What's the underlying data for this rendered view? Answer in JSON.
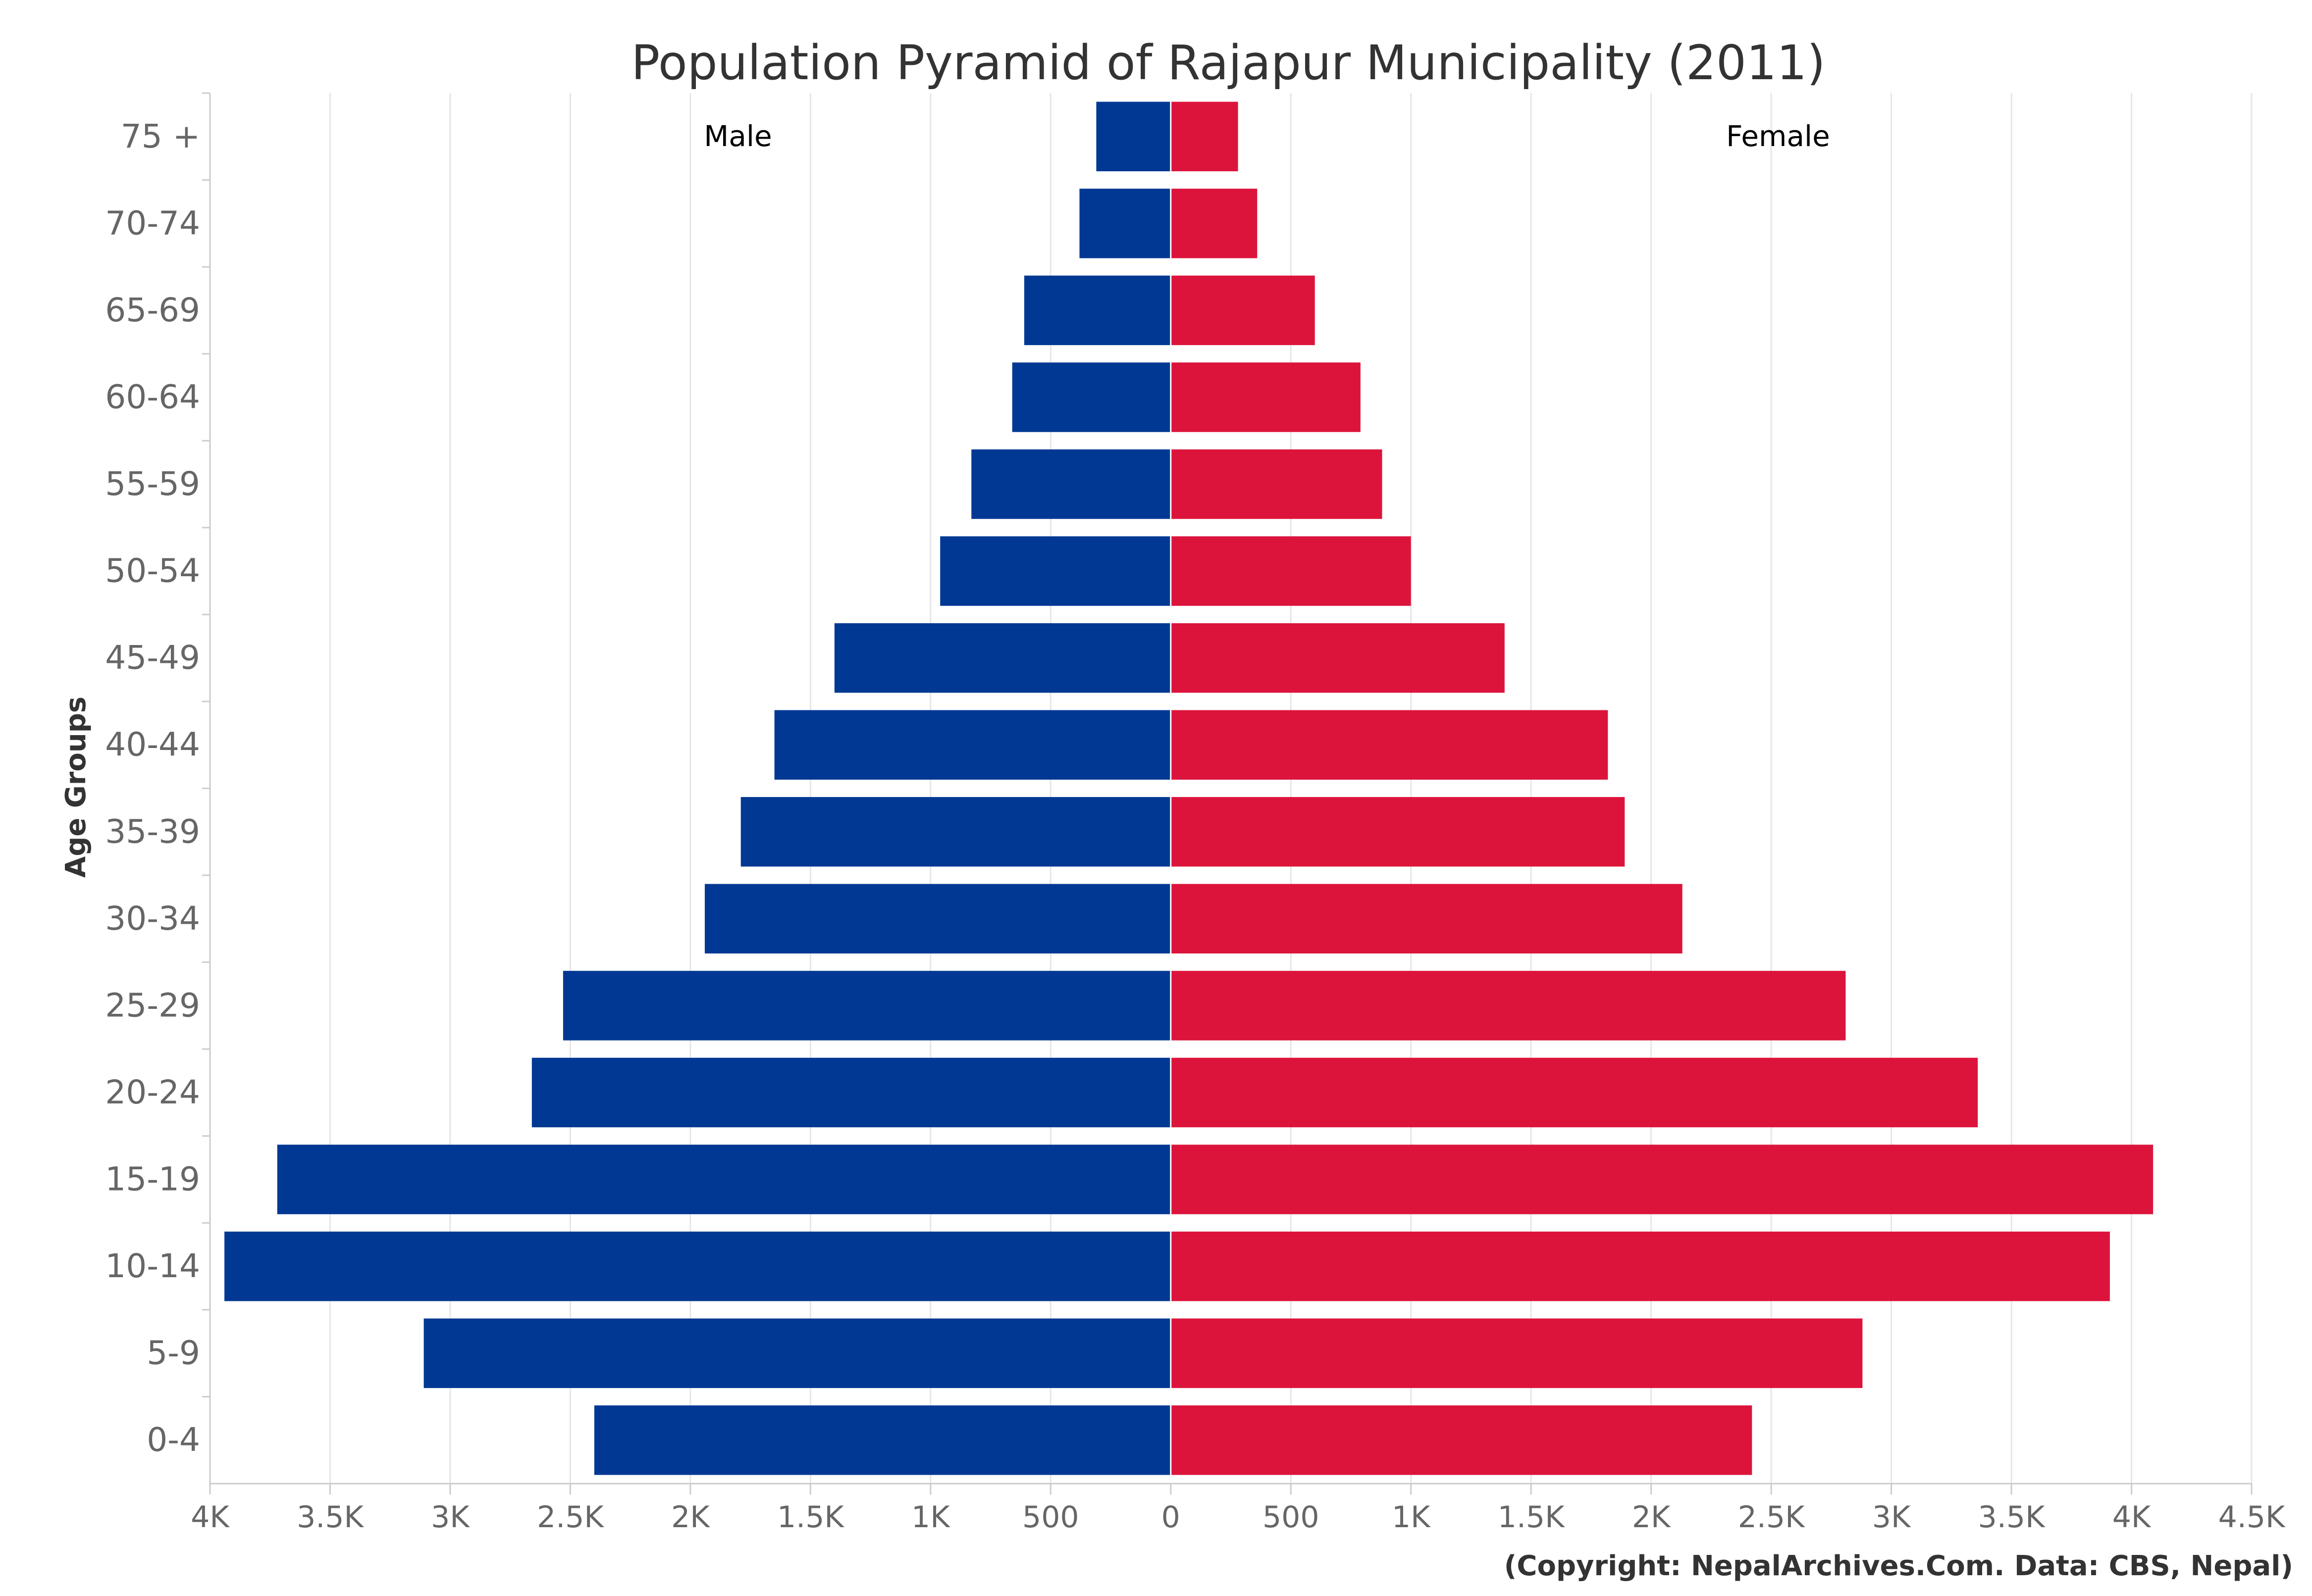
{
  "chart_data": {
    "type": "bar",
    "orientation": "horizontal-pyramid",
    "title": "Population Pyramid of Rajapur Municipality (2011)",
    "ylabel": "Age Groups",
    "xlabel": "",
    "categories": [
      "75 +",
      "70-74",
      "65-69",
      "60-64",
      "55-59",
      "50-54",
      "45-49",
      "40-44",
      "35-39",
      "30-34",
      "25-29",
      "20-24",
      "15-19",
      "10-14",
      "5-9",
      "0-4"
    ],
    "series": [
      {
        "name": "Male",
        "color": "#003893",
        "values": [
          310,
          380,
          610,
          660,
          830,
          960,
          1400,
          1650,
          1790,
          1940,
          2530,
          2660,
          3720,
          3940,
          3110,
          2400
        ]
      },
      {
        "name": "Female",
        "color": "#DC143C",
        "values": [
          280,
          360,
          600,
          790,
          880,
          1000,
          1390,
          1820,
          1890,
          2130,
          2810,
          3360,
          4090,
          3910,
          2880,
          2420
        ]
      }
    ],
    "xlim": [
      -4000,
      4500
    ],
    "x_ticks": [
      -4000,
      -3500,
      -3000,
      -2500,
      -2000,
      -1500,
      -1000,
      -500,
      0,
      500,
      1000,
      1500,
      2000,
      2500,
      3000,
      3500,
      4000,
      4500
    ],
    "x_tick_labels": [
      "4K",
      "3.5K",
      "3K",
      "2.5K",
      "2K",
      "1.5K",
      "1K",
      "500",
      "0",
      "500",
      "1K",
      "1.5K",
      "2K",
      "2.5K",
      "3K",
      "3.5K",
      "4K",
      "4.5K"
    ],
    "grid": true,
    "credits": "(Copyright: NepalArchives.Com. Data: CBS, Nepal)"
  }
}
